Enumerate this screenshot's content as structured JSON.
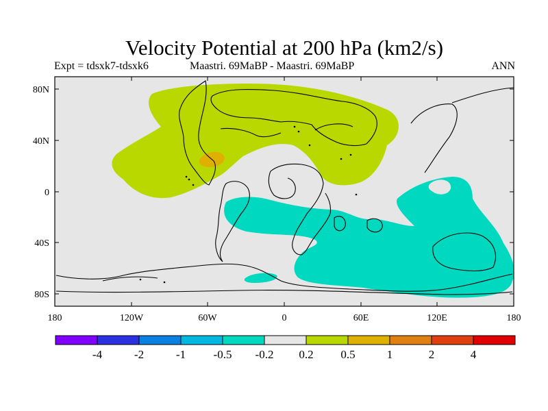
{
  "title": "Velocity Potential at 200 hPa (km2/s)",
  "subtitle_left": "Expt = tdsxk7-tdsxk6",
  "subtitle_center": "Maastri.  69MaBP - Maastri.  69MaBP",
  "subtitle_right": "ANN",
  "y_ticks": [
    "80N",
    "40N",
    "0",
    "40S",
    "80S"
  ],
  "x_ticks": [
    "180",
    "120W",
    "60W",
    "0",
    "60E",
    "120E",
    "180"
  ],
  "colorbar": {
    "colors": [
      "#7f00ff",
      "#2b30e0",
      "#0a80e0",
      "#00b8e0",
      "#00d8c0",
      "#e6e6e6",
      "#b8d800",
      "#e0b000",
      "#e08010",
      "#e04010",
      "#e00000"
    ],
    "labels": [
      "-4",
      "-2",
      "-1",
      "-0.5",
      "-0.2",
      "0.2",
      "0.5",
      "1",
      "2",
      "4"
    ]
  },
  "colors": {
    "background": "#e6e6e6",
    "positive": "#b8d800",
    "strong_positive": "#e0b000",
    "negative": "#00d8c0"
  }
}
